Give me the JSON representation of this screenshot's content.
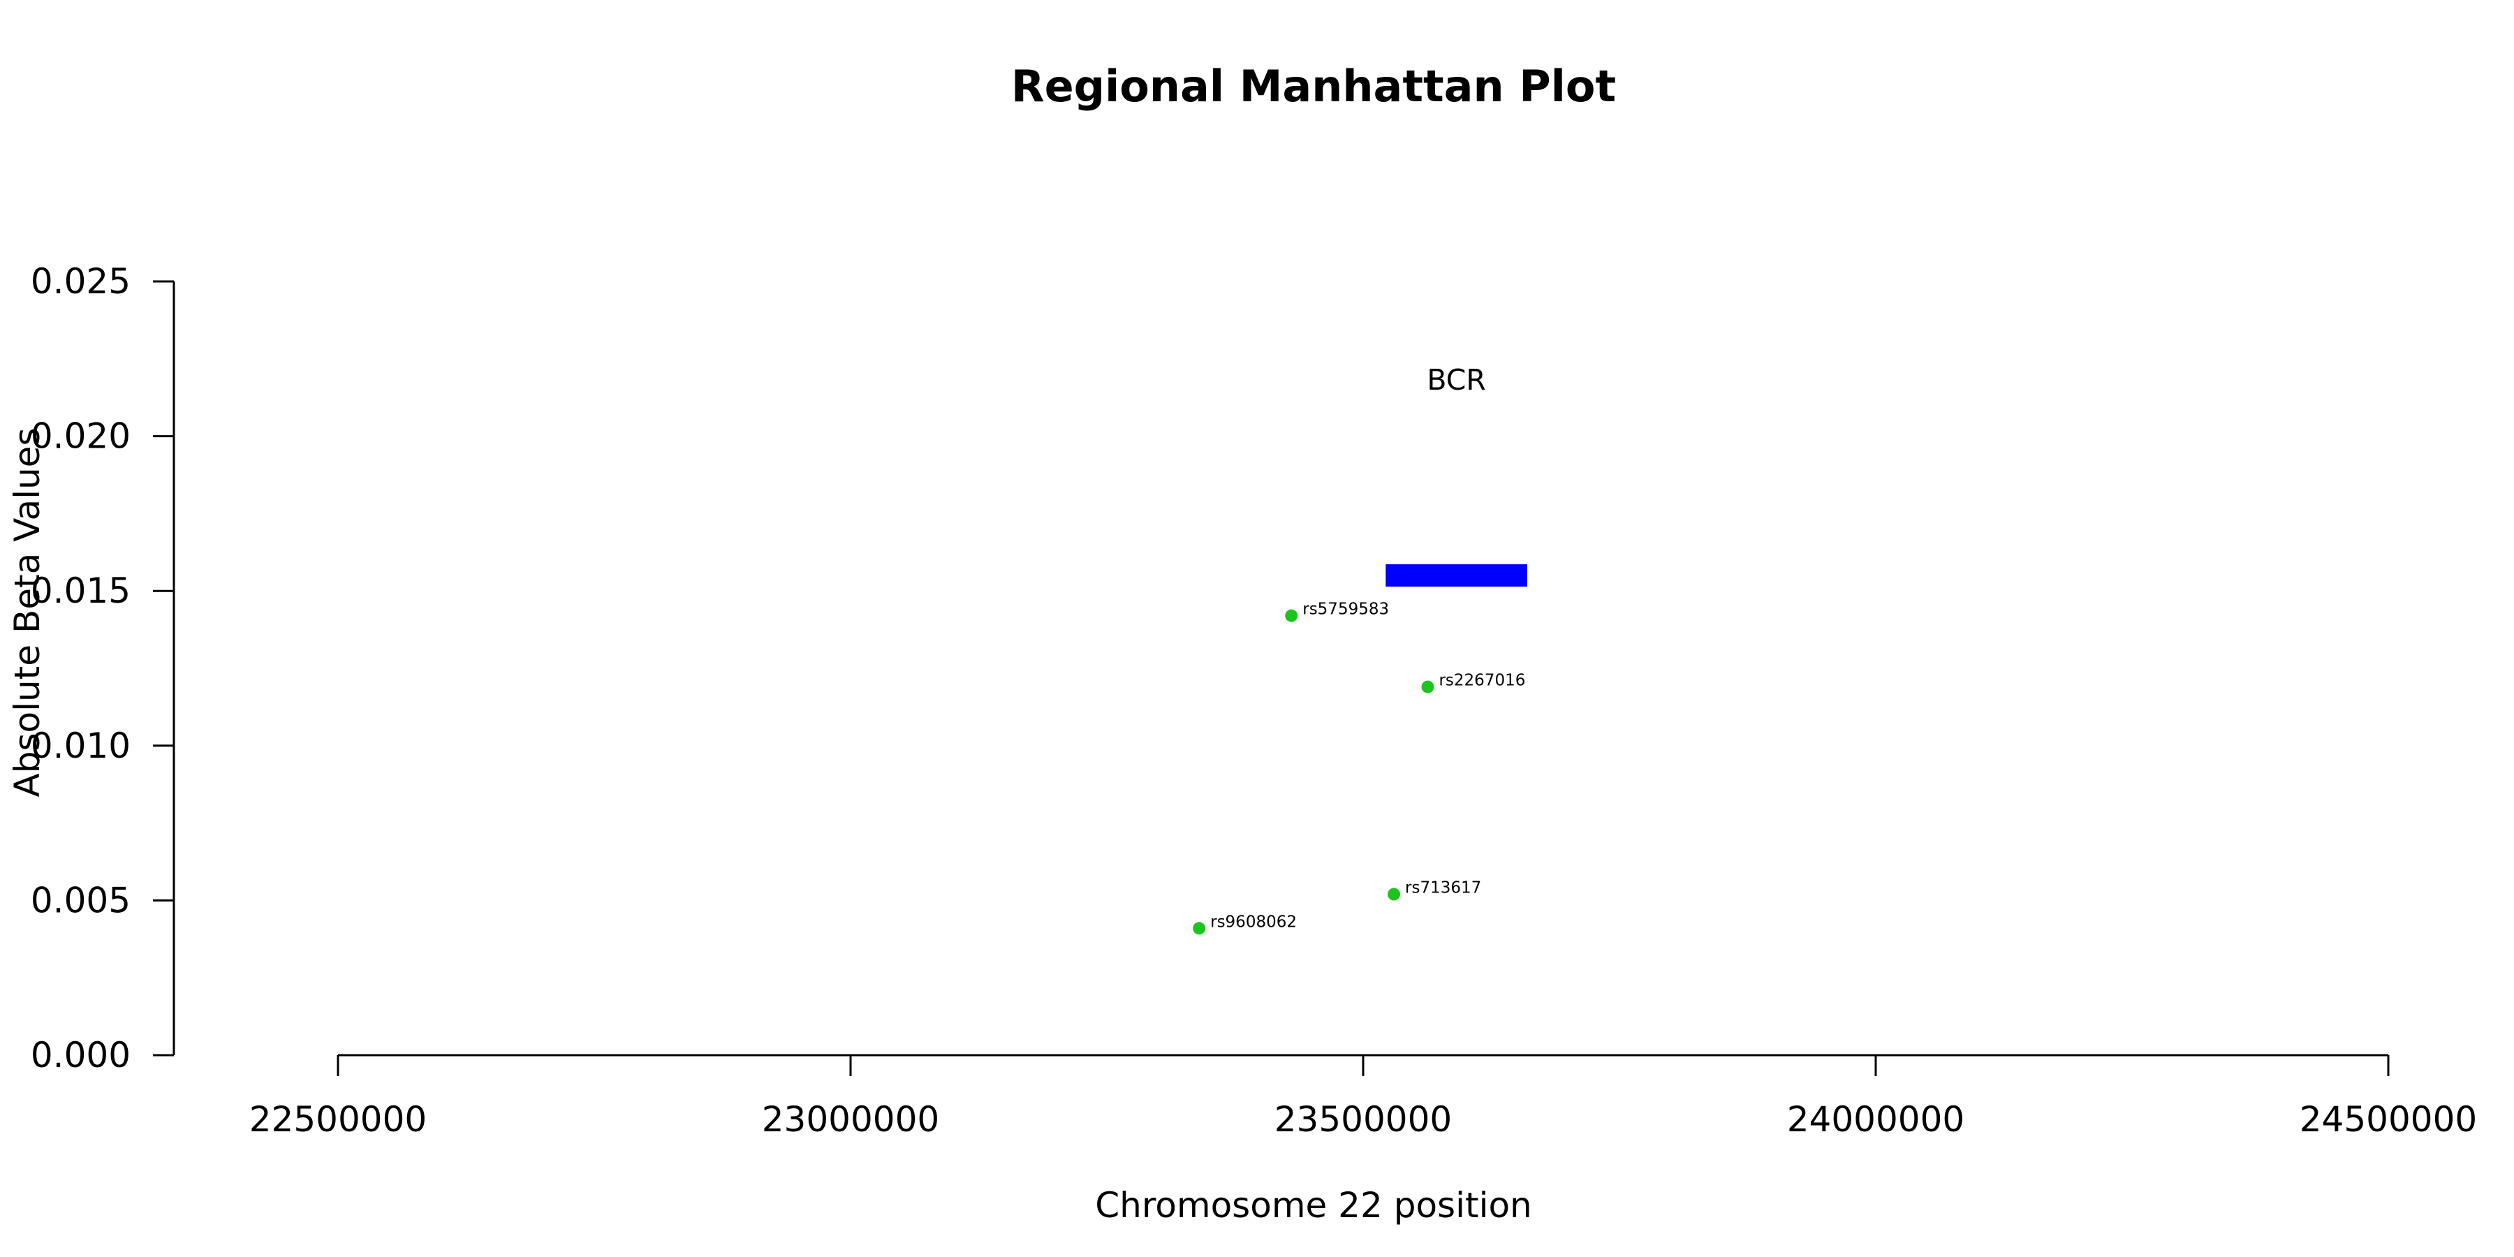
{
  "chart_data": {
    "type": "scatter",
    "title": "Regional Manhattan Plot",
    "xlabel": "Chromosome 22 position",
    "ylabel": "Absolute Beta Values",
    "xlim": [
      22500000,
      24500000
    ],
    "ylim": [
      0,
      0.025
    ],
    "x_ticks": [
      "22500000",
      "23000000",
      "23500000",
      "24000000",
      "24500000"
    ],
    "y_ticks": [
      "0.000",
      "0.005",
      "0.010",
      "0.015",
      "0.020",
      "0.025"
    ],
    "points": [
      {
        "snp": "rs5759583",
        "x": 23430000,
        "y": 0.0142
      },
      {
        "snp": "rs2267016",
        "x": 23563000,
        "y": 0.0119
      },
      {
        "snp": "rs713617",
        "x": 23530000,
        "y": 0.0052
      },
      {
        "snp": "rs9608062",
        "x": 23340000,
        "y": 0.0041
      }
    ],
    "genes": [
      {
        "name": "BCR",
        "start": 23522000,
        "end": 23660000,
        "y": 0.0155
      }
    ],
    "colors": {
      "points": "#1ec41e",
      "gene": "#0000ff"
    },
    "grid": false
  }
}
